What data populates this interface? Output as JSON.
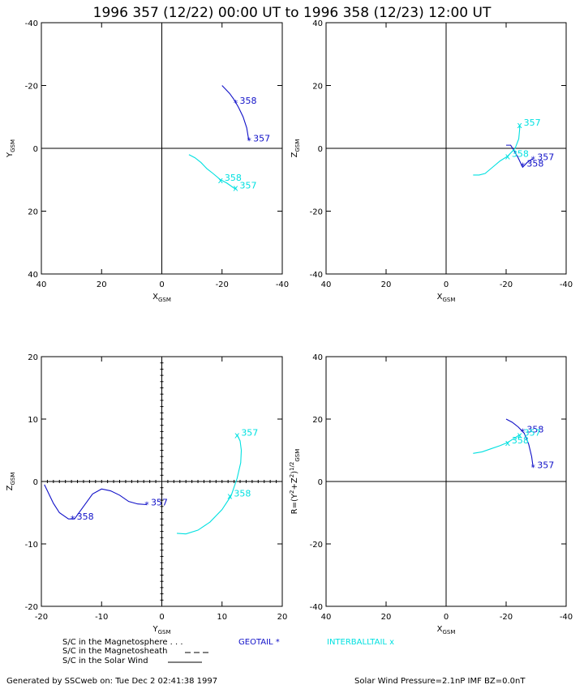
{
  "title": "1996 357 (12/22) 00:00 UT to 1996 358 (12/23) 12:00 UT",
  "colors": {
    "geotail": "#1010c8",
    "interballtail": "#00e0e0",
    "axes": "#000000"
  },
  "chart_data": [
    {
      "type": "line",
      "ylabel": "Y",
      "ylabel_sub": "GSM",
      "xlabel": "X",
      "xlabel_sub": "GSM",
      "xlim": [
        40,
        -40
      ],
      "ylim": [
        -40,
        40
      ],
      "xticks": [
        "40",
        "20",
        "0",
        "-20",
        "-40"
      ],
      "yticks": [
        "-40",
        "-20",
        "0",
        "20",
        "40"
      ],
      "grid": false,
      "series": [
        {
          "name": "GEOTAIL",
          "x": [
            -20,
            -21,
            -22.5,
            -24,
            -25.5,
            -27,
            -28.2,
            -28.8,
            -29.0
          ],
          "y": [
            -20,
            -19,
            -17.5,
            -15.5,
            -13,
            -10,
            -6.5,
            -3,
            -2.5
          ],
          "labels": [
            {
              "text": "358",
              "x": -24.5,
              "y": -14.5
            },
            {
              "text": "357",
              "x": -29,
              "y": -2.5
            }
          ]
        },
        {
          "name": "INTERBALLTAIL",
          "x": [
            -9,
            -11,
            -13,
            -15,
            -17,
            -19.5,
            -21.5,
            -23,
            -24.5
          ],
          "y": [
            2,
            3,
            4.5,
            6.5,
            8,
            10,
            11,
            12,
            13
          ],
          "labels": [
            {
              "text": "358",
              "x": -19.5,
              "y": 10
            },
            {
              "text": "357",
              "x": -24.5,
              "y": 12.5
            }
          ]
        }
      ]
    },
    {
      "type": "line",
      "ylabel": "Z",
      "ylabel_sub": "GSM",
      "xlabel": "X",
      "xlabel_sub": "GSM",
      "xlim": [
        40,
        -40
      ],
      "ylim": [
        -40,
        40
      ],
      "xticks": [
        "40",
        "20",
        "0",
        "-20",
        "-40"
      ],
      "yticks": [
        "40",
        "20",
        "0",
        "-20",
        "-40"
      ],
      "grid": false,
      "series": [
        {
          "name": "GEOTAIL",
          "x": [
            -20,
            -21.5,
            -22.5,
            -24,
            -25.5,
            -27,
            -28.5,
            -29.0
          ],
          "y": [
            -1,
            -1,
            0.5,
            3,
            6,
            4.5,
            3.5,
            3.5
          ],
          "labels": [
            {
              "text": "358",
              "x": -25.5,
              "y": 5.5
            },
            {
              "text": "357",
              "x": -29,
              "y": 3.5
            }
          ]
        },
        {
          "name": "INTERBALLTAIL",
          "x": [
            -9,
            -11,
            -13,
            -15.5,
            -18,
            -20.5,
            -23,
            -24.2,
            -24.5,
            -24.5
          ],
          "y": [
            8.5,
            8.5,
            8,
            6,
            4,
            2.5,
            0,
            -3,
            -6,
            -7.5
          ],
          "labels": [
            {
              "text": "358",
              "x": -20.5,
              "y": 2.5
            },
            {
              "text": "357",
              "x": -24.5,
              "y": -7.5
            }
          ]
        }
      ]
    },
    {
      "type": "line",
      "ylabel": "Z",
      "ylabel_sub": "GSM",
      "xlabel": "Y",
      "xlabel_sub": "GSM",
      "xlim": [
        -20,
        20
      ],
      "ylim": [
        20,
        -20
      ],
      "xticks": [
        "-20",
        "-10",
        "0",
        "10",
        "20"
      ],
      "yticks": [
        "20",
        "10",
        "0",
        "-10",
        "-20"
      ],
      "grid": true,
      "series": [
        {
          "name": "GEOTAIL",
          "x": [
            -19.5,
            -19,
            -18,
            -17,
            -15.5,
            -14.5,
            -13,
            -11.5,
            -10,
            -8.5,
            -7,
            -5.5,
            -4,
            -2.5
          ],
          "y": [
            -0.5,
            -1.5,
            -3.5,
            -5,
            -6,
            -6,
            -4,
            -2,
            -1.2,
            -1.5,
            -2.2,
            -3.2,
            -3.6,
            -3.7
          ],
          "labels": [
            {
              "text": "358",
              "x": -14.8,
              "y": -6
            },
            {
              "text": "357",
              "x": -2.5,
              "y": -3.7
            }
          ]
        },
        {
          "name": "INTERBALLTAIL",
          "x": [
            2.5,
            4,
            6,
            8,
            10,
            11.5,
            12.5,
            13.1,
            13.2,
            13,
            12.5
          ],
          "y": [
            -8.3,
            -8.4,
            -7.8,
            -6.5,
            -4.5,
            -2.3,
            0.5,
            3,
            5,
            6.5,
            7.5
          ],
          "labels": [
            {
              "text": "358",
              "x": 11.3,
              "y": -2.3
            },
            {
              "text": "357",
              "x": 12.5,
              "y": 7.5
            }
          ]
        }
      ]
    },
    {
      "type": "line",
      "ylabel": "R=(Y",
      "ylabel_mid": "2",
      "ylabel_mid2": "+Z",
      "ylabel_sup2": "2",
      "ylabel_close": ")",
      "ylabel_pow": "1/2",
      "ylabel_sub": "GSM",
      "xlabel": "X",
      "xlabel_sub": "GSM",
      "xlim": [
        40,
        -40
      ],
      "ylim": [
        40,
        -40
      ],
      "xticks": [
        "40",
        "20",
        "0",
        "-20",
        "-40"
      ],
      "yticks": [
        "40",
        "20",
        "0",
        "-20",
        "-40"
      ],
      "grid": false,
      "series": [
        {
          "name": "GEOTAIL",
          "x": [
            -20,
            -22,
            -24,
            -26,
            -27.5,
            -28.5,
            -29.0
          ],
          "y": [
            20,
            19,
            17.5,
            15.5,
            12,
            8,
            4.5
          ],
          "labels": [
            {
              "text": "358",
              "x": -25.5,
              "y": 16
            },
            {
              "text": "357",
              "x": -29,
              "y": 4.5
            }
          ]
        },
        {
          "name": "INTERBALLTAIL",
          "x": [
            -9,
            -12,
            -15,
            -18,
            -20.5,
            -23,
            -24.5
          ],
          "y": [
            9,
            9.5,
            10.5,
            11.5,
            12.5,
            14,
            15
          ],
          "labels": [
            {
              "text": "358",
              "x": -20.5,
              "y": 12.5
            },
            {
              "text": "357",
              "x": -24.5,
              "y": 15
            }
          ]
        }
      ]
    }
  ],
  "legend": {
    "magnetosphere": "S/C in the Magnetosphere . . .",
    "magnetosheath": "S/C in the Magnetosheath",
    "solar_wind": "S/C in the Solar Wind",
    "geotail": "GEOTAIL *",
    "interballtail": "INTERBALLTAIL x"
  },
  "footer": {
    "generated": "Generated by SSCweb on: Tue Dec  2 02:41:38 1997",
    "pressure": "Solar Wind Pressure=2.1nP   IMF BZ=0.0nT"
  }
}
